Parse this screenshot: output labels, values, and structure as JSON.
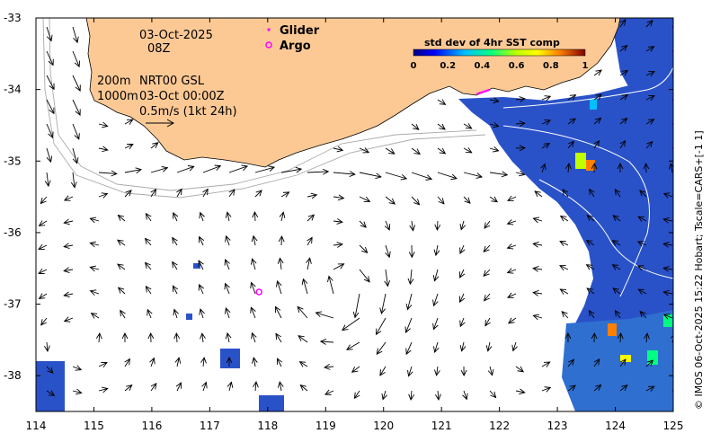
{
  "header": {
    "date": "03-Oct-2025",
    "hour": "08Z",
    "depth_line1": "200m",
    "product": "NRT00 GSL",
    "depth_line2": "1000m",
    "timestamp": "03-Oct 00:00Z",
    "scale_label": "0.5m/s (1kt 24h)"
  },
  "legend": {
    "glider_label": "Glider",
    "argo_label": "Argo",
    "glider_color": "#ff00ff",
    "argo_color": "#ff00ff"
  },
  "colorbar": {
    "title": "std dev of 4hr SST comp",
    "ticks": [
      "0",
      "0.2",
      "0.4",
      "0.6",
      "0.8",
      "1"
    ],
    "min": 0,
    "max": 1
  },
  "axes": {
    "x_ticks": [
      "114",
      "115",
      "116",
      "117",
      "118",
      "119",
      "120",
      "121",
      "122",
      "123",
      "124",
      "125"
    ],
    "y_ticks": [
      "-33",
      "-34",
      "-35",
      "-36",
      "-37",
      "-38"
    ],
    "lon_range": [
      114,
      125
    ],
    "lat_range": [
      -38.5,
      -33
    ]
  },
  "credit": "© IMOS 06-Oct-2025 15:22 Hobart; Tscale=CARS+[-1 1]",
  "colors": {
    "land": "#fcc995",
    "ocean_sst": "#2a52c8",
    "arrow": "#000000",
    "contour": "#aaaaaa"
  },
  "markers": {
    "argo": [
      {
        "lon": 117.85,
        "lat": -36.83
      }
    ],
    "glider": [
      {
        "lon": 121.78,
        "lat": -34.02
      }
    ]
  },
  "eddy": {
    "center_lon": 119.35,
    "center_lat": -36.85
  }
}
